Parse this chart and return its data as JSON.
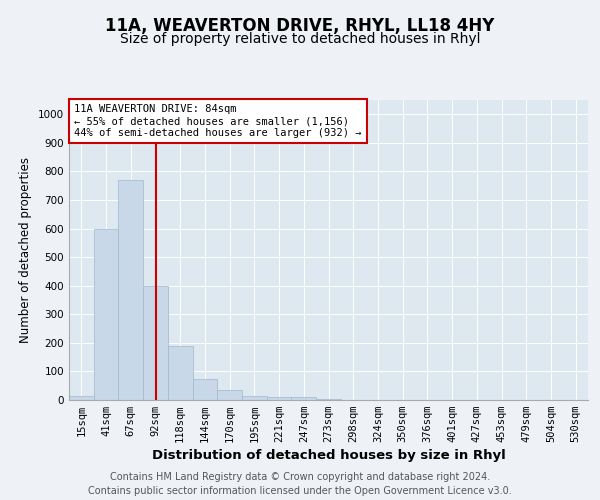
{
  "title1": "11A, WEAVERTON DRIVE, RHYL, LL18 4HY",
  "title2": "Size of property relative to detached houses in Rhyl",
  "xlabel": "Distribution of detached houses by size in Rhyl",
  "ylabel": "Number of detached properties",
  "categories": [
    "15sqm",
    "41sqm",
    "67sqm",
    "92sqm",
    "118sqm",
    "144sqm",
    "170sqm",
    "195sqm",
    "221sqm",
    "247sqm",
    "273sqm",
    "298sqm",
    "324sqm",
    "350sqm",
    "376sqm",
    "401sqm",
    "427sqm",
    "453sqm",
    "479sqm",
    "504sqm",
    "530sqm"
  ],
  "values": [
    15,
    600,
    770,
    400,
    190,
    75,
    35,
    15,
    10,
    10,
    5,
    0,
    0,
    0,
    0,
    0,
    0,
    0,
    0,
    0,
    0
  ],
  "bar_color": "#c8d8e8",
  "bar_edge_color": "#a0b8cc",
  "vline_x": 3,
  "vline_color": "#cc0000",
  "annotation_line1": "11A WEAVERTON DRIVE: 84sqm",
  "annotation_line2": "← 55% of detached houses are smaller (1,156)",
  "annotation_line3": "44% of semi-detached houses are larger (932) →",
  "annotation_box_color": "#ffffff",
  "annotation_box_edge": "#cc0000",
  "ylim": [
    0,
    1050
  ],
  "yticks": [
    0,
    100,
    200,
    300,
    400,
    500,
    600,
    700,
    800,
    900,
    1000
  ],
  "footer1": "Contains HM Land Registry data © Crown copyright and database right 2024.",
  "footer2": "Contains public sector information licensed under the Open Government Licence v3.0.",
  "bg_color": "#eef2f7",
  "plot_bg_color": "#dde8f0",
  "title1_fontsize": 12,
  "title2_fontsize": 10,
  "xlabel_fontsize": 9.5,
  "ylabel_fontsize": 8.5,
  "tick_fontsize": 7.5,
  "annotation_fontsize": 7.5,
  "footer_fontsize": 7
}
